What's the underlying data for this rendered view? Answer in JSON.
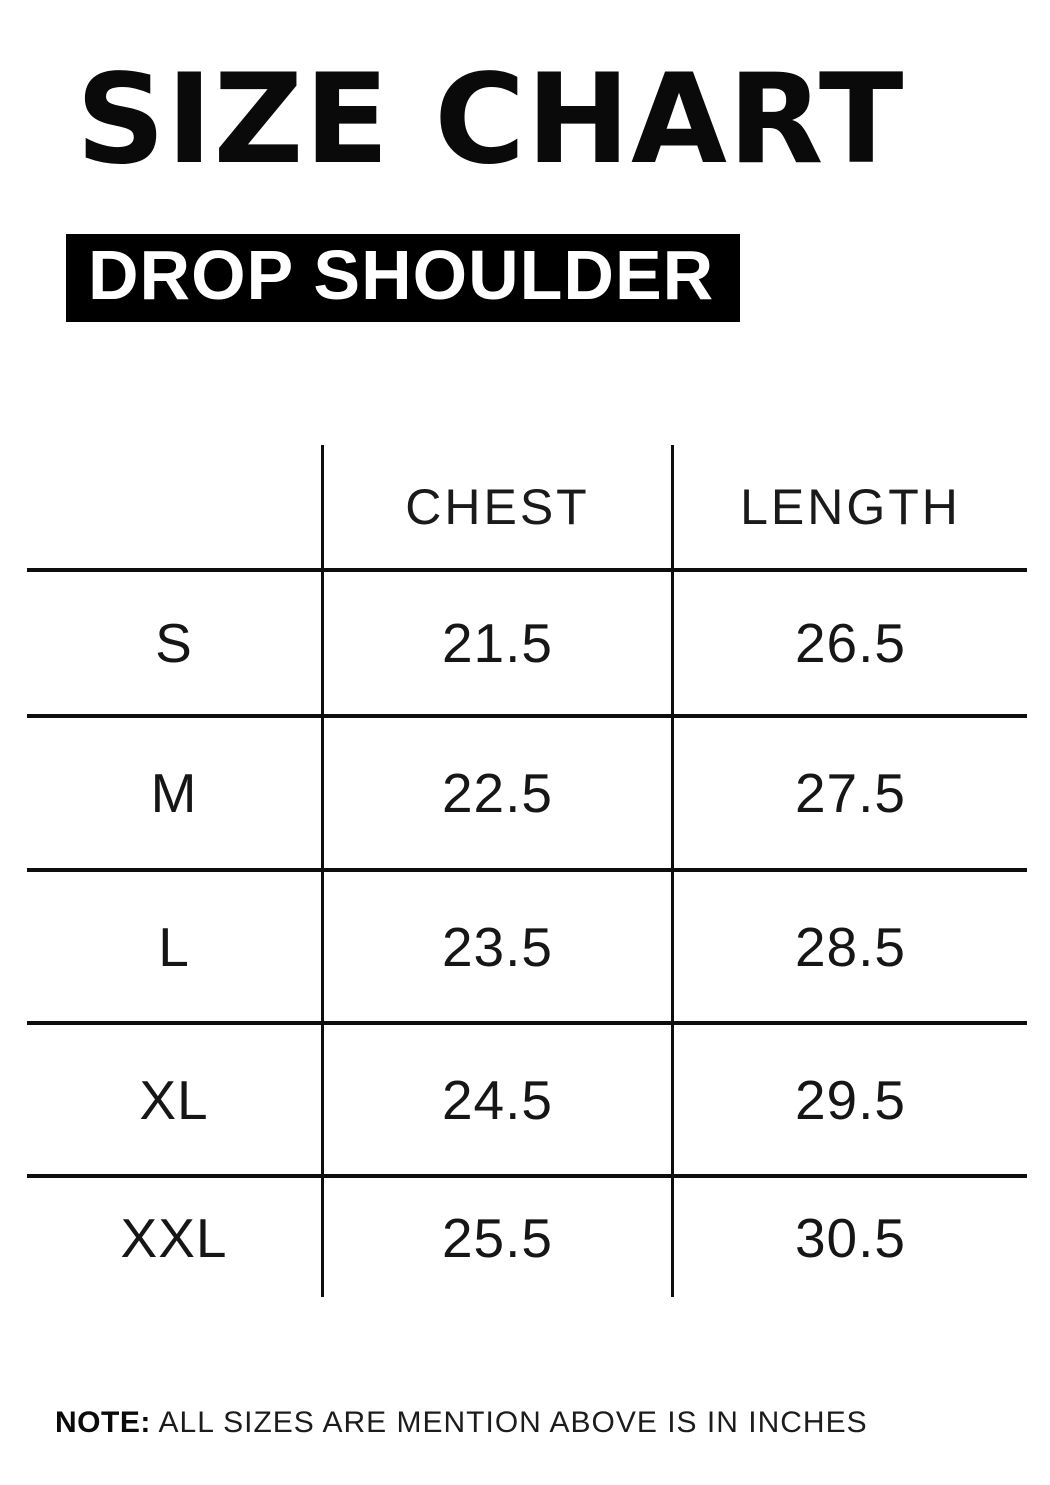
{
  "header": {
    "title": "SIZE CHART",
    "badge": "DROP SHOULDER"
  },
  "note": {
    "label": "NOTE:",
    "text": "ALL SIZES ARE MENTION ABOVE IS IN INCHES"
  },
  "colors": {
    "ink": "#0a0a0a",
    "badge_bg": "#000000",
    "badge_text": "#ffffff",
    "line": "#0e0e0e"
  },
  "chart_data": {
    "type": "table",
    "title": "SIZE CHART",
    "subtitle": "DROP SHOULDER",
    "units": "inches",
    "columns": [
      "",
      "CHEST",
      "LENGTH"
    ],
    "rows": [
      {
        "size": "S",
        "chest": "21.5",
        "length": "26.5"
      },
      {
        "size": "M",
        "chest": "22.5",
        "length": "27.5"
      },
      {
        "size": "L",
        "chest": "23.5",
        "length": "28.5"
      },
      {
        "size": "XL",
        "chest": "24.5",
        "length": "29.5"
      },
      {
        "size": "XXL",
        "chest": "25.5",
        "length": "30.5"
      }
    ]
  }
}
